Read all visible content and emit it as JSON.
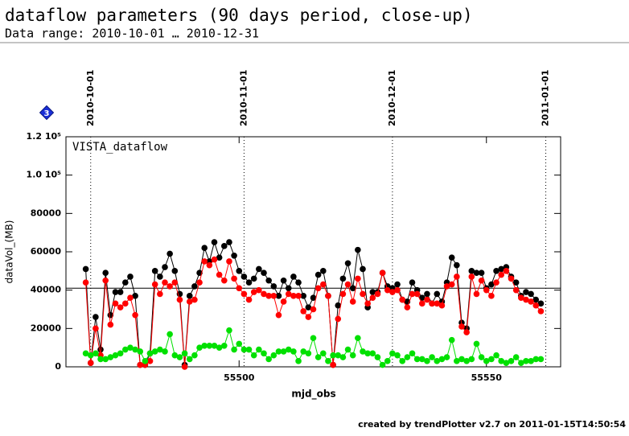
{
  "chart_data": {
    "type": "line",
    "title": "dataflow parameters (90 days period, close-up)",
    "subtitle": "Data range: 2010-10-01 … 2010-12-31",
    "panel_label": "VISTA_dataflow",
    "badge": "3",
    "xlabel": "mjd_obs",
    "ylabel": "dataVol_(MB)",
    "footer": "created by trendPlotter v2.7 on 2011-01-15T14:50:54",
    "xlim": [
      55465,
      55565
    ],
    "xticks": [
      55500,
      55550
    ],
    "ylim": [
      0,
      120000
    ],
    "yticks": [
      0,
      20000,
      40000,
      60000,
      80000,
      {
        "value": 100000,
        "label": "1.0 10⁵"
      },
      {
        "value": 120000,
        "label": "1.2 10⁵"
      }
    ],
    "reference_line": 41000,
    "date_markers": [
      {
        "x": 55470,
        "label": "2010-10-01"
      },
      {
        "x": 55501,
        "label": "2010-11-01"
      },
      {
        "x": 55531,
        "label": "2010-12-01"
      },
      {
        "x": 55562,
        "label": "2011-01-01"
      }
    ],
    "x": [
      55469,
      55470,
      55471,
      55472,
      55473,
      55474,
      55475,
      55476,
      55477,
      55478,
      55479,
      55480,
      55481,
      55482,
      55483,
      55484,
      55485,
      55486,
      55487,
      55488,
      55489,
      55490,
      55491,
      55492,
      55493,
      55494,
      55495,
      55496,
      55497,
      55498,
      55499,
      55500,
      55501,
      55502,
      55503,
      55504,
      55505,
      55506,
      55507,
      55508,
      55509,
      55510,
      55511,
      55512,
      55513,
      55514,
      55515,
      55516,
      55517,
      55518,
      55519,
      55520,
      55521,
      55522,
      55523,
      55524,
      55525,
      55526,
      55527,
      55528,
      55529,
      55530,
      55531,
      55532,
      55533,
      55534,
      55535,
      55536,
      55537,
      55538,
      55539,
      55540,
      55541,
      55542,
      55543,
      55544,
      55545,
      55546,
      55547,
      55548,
      55549,
      55550,
      55551,
      55552,
      55553,
      55554,
      55555,
      55556,
      55557,
      55558,
      55559,
      55560,
      55561
    ],
    "series": [
      {
        "color": "#000000",
        "values": [
          51000,
          2000,
          26000,
          9000,
          49000,
          27000,
          39000,
          39000,
          44000,
          47000,
          37000,
          1000,
          1000,
          7000,
          50000,
          47000,
          52000,
          59000,
          50000,
          38000,
          1000,
          37000,
          42000,
          49000,
          62000,
          55000,
          65000,
          57000,
          63000,
          65000,
          58000,
          50000,
          47000,
          44000,
          46000,
          51000,
          49000,
          45000,
          42000,
          37000,
          45000,
          41000,
          47000,
          44000,
          37000,
          31000,
          36000,
          48000,
          50000,
          37000,
          1000,
          32000,
          46000,
          54000,
          41000,
          61000,
          51000,
          31000,
          39000,
          39000,
          49000,
          42000,
          41000,
          43000,
          35000,
          34000,
          44000,
          40000,
          36000,
          38000,
          33000,
          38000,
          34000,
          44000,
          57000,
          53000,
          23000,
          20000,
          50000,
          49000,
          49000,
          41000,
          43000,
          50000,
          51000,
          52000,
          47000,
          44000,
          37000,
          39000,
          38000,
          35000,
          33000
        ]
      },
      {
        "color": "#ff0000",
        "values": [
          44000,
          2000,
          20000,
          6000,
          45000,
          22000,
          33000,
          31000,
          33000,
          36000,
          27000,
          1000,
          1000,
          3000,
          43000,
          38000,
          44000,
          42000,
          44000,
          35000,
          0,
          34000,
          35000,
          44000,
          55000,
          53000,
          56000,
          48000,
          45000,
          55000,
          46000,
          41000,
          38000,
          35000,
          39000,
          40000,
          38000,
          37000,
          37000,
          27000,
          34000,
          38000,
          37000,
          37000,
          29000,
          26000,
          30000,
          41000,
          43000,
          37000,
          1000,
          25000,
          38000,
          43000,
          34000,
          46000,
          38000,
          33000,
          36000,
          38000,
          49000,
          40000,
          39000,
          40000,
          35000,
          31000,
          38000,
          38000,
          33000,
          35000,
          33000,
          33000,
          32000,
          42000,
          43000,
          47000,
          21000,
          18000,
          47000,
          38000,
          45000,
          40000,
          37000,
          44000,
          48000,
          50000,
          46000,
          40000,
          36000,
          35000,
          34000,
          32000,
          29000
        ]
      },
      {
        "color": "#00e000",
        "values": [
          7000,
          6000,
          7000,
          4000,
          4000,
          5000,
          6000,
          7000,
          9000,
          10000,
          9000,
          8000,
          3000,
          7000,
          8000,
          9000,
          8000,
          17000,
          6000,
          5000,
          7000,
          4000,
          6000,
          10000,
          11000,
          11000,
          11000,
          10000,
          11000,
          19000,
          9000,
          12000,
          9000,
          9000,
          6000,
          9000,
          7000,
          4000,
          6000,
          8000,
          8000,
          9000,
          8000,
          3000,
          8000,
          7000,
          15000,
          5000,
          7000,
          3000,
          6000,
          6000,
          5000,
          9000,
          6000,
          15000,
          8000,
          7000,
          7000,
          5000,
          1000,
          3000,
          7000,
          6000,
          3000,
          5000,
          7000,
          4000,
          4000,
          3000,
          5000,
          3000,
          4000,
          5000,
          14000,
          3000,
          4000,
          3000,
          4000,
          12000,
          5000,
          3000,
          4000,
          6000,
          3000,
          2000,
          3000,
          5000,
          2000,
          3000,
          3000,
          4000,
          4000
        ]
      }
    ]
  }
}
